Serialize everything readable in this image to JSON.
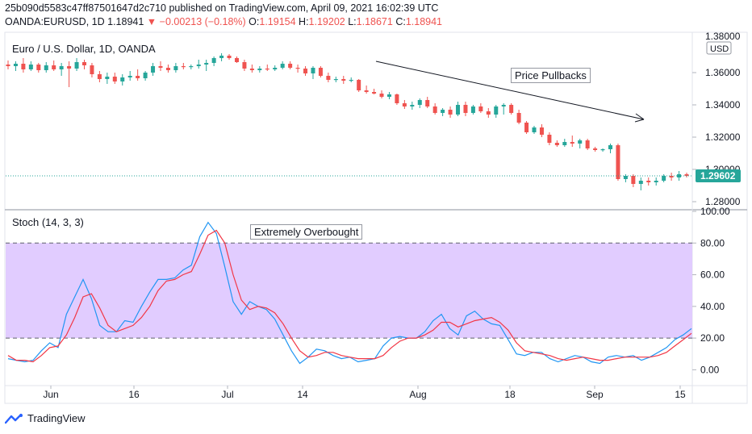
{
  "header": {
    "line1": "25b090d5583c47ff87501647d2c710 published on TradingView.com, April 09, 2021 16:02:39 UTC",
    "symbol": "OANDA:EURUSD, 1D",
    "last": "1.18941",
    "change_arrow": "▼",
    "change": "−0.00213 (−0.18%)",
    "o_label": "O:",
    "o_value": "1.19154",
    "h_label": "H:",
    "h_value": "1.19202",
    "l_label": "L:",
    "l_value": "1.18671",
    "c_label": "C:",
    "c_value": "1.18941"
  },
  "brand": {
    "name": "TradingView",
    "icon": "tradingview-logo-icon"
  },
  "colors": {
    "up": "#26a69a",
    "down": "#ef5350",
    "k_line": "#2196f3",
    "d_line": "#f23645",
    "band": "#e1ccff",
    "price_badge": "#26a69a"
  },
  "chart_data": [
    {
      "type": "candlestick",
      "title": "Euro / U.S. Dollar, 1D, OANDA",
      "currency": "USD",
      "ylim": [
        1.276,
        1.385
      ],
      "y_ticks": [
        "1.36000",
        "1.34000",
        "1.32000",
        "1.30000",
        "1.28000"
      ],
      "y_tick_top_partial": "1.38000",
      "x_ticks": [
        "Jun",
        "16",
        "Jul",
        "14",
        "Aug",
        "18",
        "Sep",
        "15"
      ],
      "last_price": "1.29602",
      "ohlc": [
        [
          1.365,
          1.3675,
          1.362,
          1.364
        ],
        [
          1.364,
          1.367,
          1.361,
          1.3655
        ],
        [
          1.3655,
          1.369,
          1.36,
          1.362
        ],
        [
          1.362,
          1.367,
          1.361,
          1.365
        ],
        [
          1.365,
          1.366,
          1.36,
          1.3615
        ],
        [
          1.3615,
          1.3665,
          1.36,
          1.3645
        ],
        [
          1.3645,
          1.3675,
          1.361,
          1.362
        ],
        [
          1.362,
          1.366,
          1.358,
          1.364
        ],
        [
          1.364,
          1.367,
          1.351,
          1.3625
        ],
        [
          1.3625,
          1.369,
          1.361,
          1.3665
        ],
        [
          1.3665,
          1.368,
          1.362,
          1.3645
        ],
        [
          1.3645,
          1.366,
          1.357,
          1.359
        ],
        [
          1.359,
          1.361,
          1.354,
          1.356
        ],
        [
          1.356,
          1.36,
          1.353,
          1.3575
        ],
        [
          1.3575,
          1.36,
          1.353,
          1.3545
        ],
        [
          1.3545,
          1.359,
          1.352,
          1.357
        ],
        [
          1.357,
          1.361,
          1.355,
          1.358
        ],
        [
          1.358,
          1.362,
          1.355,
          1.3565
        ],
        [
          1.3565,
          1.361,
          1.355,
          1.36
        ],
        [
          1.36,
          1.366,
          1.358,
          1.364
        ],
        [
          1.364,
          1.367,
          1.361,
          1.363
        ],
        [
          1.363,
          1.365,
          1.36,
          1.3615
        ],
        [
          1.3615,
          1.366,
          1.36,
          1.364
        ],
        [
          1.364,
          1.366,
          1.362,
          1.3635
        ],
        [
          1.3635,
          1.365,
          1.362,
          1.364
        ],
        [
          1.364,
          1.368,
          1.3625,
          1.365
        ],
        [
          1.365,
          1.368,
          1.361,
          1.366
        ],
        [
          1.366,
          1.37,
          1.364,
          1.369
        ],
        [
          1.369,
          1.372,
          1.367,
          1.3705
        ],
        [
          1.3705,
          1.3715,
          1.368,
          1.369
        ],
        [
          1.369,
          1.37,
          1.366,
          1.3665
        ],
        [
          1.3665,
          1.368,
          1.361,
          1.3625
        ],
        [
          1.3625,
          1.365,
          1.36,
          1.3615
        ],
        [
          1.3615,
          1.364,
          1.36,
          1.3625
        ],
        [
          1.3625,
          1.365,
          1.361,
          1.362
        ],
        [
          1.362,
          1.3645,
          1.361,
          1.363
        ],
        [
          1.363,
          1.367,
          1.362,
          1.3655
        ],
        [
          1.3655,
          1.367,
          1.362,
          1.363
        ],
        [
          1.363,
          1.365,
          1.36,
          1.3625
        ],
        [
          1.3625,
          1.364,
          1.358,
          1.3595
        ],
        [
          1.3595,
          1.364,
          1.356,
          1.363
        ],
        [
          1.363,
          1.364,
          1.357,
          1.358
        ],
        [
          1.358,
          1.36,
          1.354,
          1.3555
        ],
        [
          1.3555,
          1.3575,
          1.354,
          1.356
        ],
        [
          1.356,
          1.358,
          1.353,
          1.355
        ],
        [
          1.355,
          1.357,
          1.354,
          1.3555
        ],
        [
          1.3555,
          1.356,
          1.348,
          1.349
        ],
        [
          1.349,
          1.352,
          1.347,
          1.348
        ],
        [
          1.348,
          1.35,
          1.3465,
          1.347
        ],
        [
          1.347,
          1.349,
          1.344,
          1.345
        ],
        [
          1.345,
          1.348,
          1.3435,
          1.3465
        ],
        [
          1.3465,
          1.347,
          1.34,
          1.341
        ],
        [
          1.341,
          1.343,
          1.3375,
          1.339
        ],
        [
          1.339,
          1.342,
          1.337,
          1.34
        ],
        [
          1.34,
          1.344,
          1.338,
          1.343
        ],
        [
          1.343,
          1.345,
          1.338,
          1.339
        ],
        [
          1.339,
          1.341,
          1.334,
          1.335
        ],
        [
          1.335,
          1.338,
          1.333,
          1.337
        ],
        [
          1.337,
          1.339,
          1.332,
          1.334
        ],
        [
          1.334,
          1.342,
          1.333,
          1.34
        ],
        [
          1.34,
          1.342,
          1.333,
          1.335
        ],
        [
          1.335,
          1.34,
          1.334,
          1.339
        ],
        [
          1.339,
          1.341,
          1.335,
          1.336
        ],
        [
          1.336,
          1.338,
          1.332,
          1.334
        ],
        [
          1.334,
          1.34,
          1.332,
          1.339
        ],
        [
          1.339,
          1.341,
          1.334,
          1.34
        ],
        [
          1.34,
          1.341,
          1.334,
          1.335
        ],
        [
          1.335,
          1.337,
          1.328,
          1.329
        ],
        [
          1.329,
          1.33,
          1.322,
          1.323
        ],
        [
          1.323,
          1.327,
          1.322,
          1.326
        ],
        [
          1.326,
          1.328,
          1.32,
          1.3215
        ],
        [
          1.3215,
          1.323,
          1.315,
          1.3165
        ],
        [
          1.3165,
          1.318,
          1.314,
          1.315
        ],
        [
          1.315,
          1.319,
          1.314,
          1.317
        ],
        [
          1.317,
          1.321,
          1.314,
          1.316
        ],
        [
          1.316,
          1.319,
          1.313,
          1.318
        ],
        [
          1.318,
          1.319,
          1.312,
          1.313
        ],
        [
          1.313,
          1.314,
          1.311,
          1.312
        ],
        [
          1.312,
          1.313,
          1.311,
          1.3125
        ],
        [
          1.3125,
          1.316,
          1.31,
          1.315
        ],
        [
          1.315,
          1.316,
          1.293,
          1.294
        ],
        [
          1.294,
          1.297,
          1.292,
          1.296
        ],
        [
          1.296,
          1.297,
          1.289,
          1.291
        ],
        [
          1.291,
          1.295,
          1.287,
          1.293
        ],
        [
          1.293,
          1.295,
          1.29,
          1.292
        ],
        [
          1.292,
          1.295,
          1.29,
          1.293
        ],
        [
          1.293,
          1.297,
          1.292,
          1.296
        ],
        [
          1.296,
          1.298,
          1.293,
          1.295
        ],
        [
          1.295,
          1.299,
          1.293,
          1.297
        ],
        [
          1.297,
          1.298,
          1.295,
          1.296
        ]
      ]
    },
    {
      "type": "line",
      "title": "Stoch (14, 3, 3)",
      "ylim": [
        -10,
        100
      ],
      "y_ticks": [
        "100.00",
        "80.00",
        "60.00",
        "40.00",
        "20.00",
        "0.00"
      ],
      "band": [
        20,
        80
      ],
      "series": [
        {
          "values": [
            7,
            6,
            5,
            6,
            12,
            17,
            14,
            35,
            46,
            57,
            45,
            28,
            24,
            24,
            31,
            30,
            40,
            49,
            57,
            57,
            58,
            63,
            66,
            84,
            93,
            86,
            65,
            43,
            35,
            43,
            40,
            38,
            32,
            22,
            12,
            4,
            8,
            13,
            12,
            9,
            7,
            8,
            5,
            6,
            7,
            15,
            20,
            21,
            20,
            20,
            24,
            31,
            35,
            26,
            22,
            34,
            37,
            32,
            29,
            28,
            19,
            10,
            9,
            11,
            11,
            7,
            5,
            7,
            9,
            8,
            5,
            4,
            8,
            9,
            8,
            9,
            6,
            8,
            11,
            14,
            19,
            22,
            26
          ]
        },
        {
          "values": [
            9,
            6,
            6,
            5,
            9,
            14,
            15,
            22,
            33,
            46,
            48,
            39,
            28,
            24,
            26,
            28,
            33,
            40,
            50,
            56,
            57,
            60,
            62,
            73,
            85,
            88,
            80,
            60,
            44,
            38,
            40,
            39,
            36,
            29,
            20,
            12,
            8,
            9,
            11,
            11,
            9,
            8,
            7,
            7,
            7,
            9,
            14,
            18,
            20,
            20,
            22,
            25,
            30,
            30,
            27,
            29,
            31,
            32,
            33,
            30,
            25,
            17,
            12,
            11,
            10,
            9,
            7,
            6,
            7,
            8,
            7,
            6,
            6,
            7,
            8,
            8,
            8,
            8,
            9,
            11,
            15,
            19,
            23
          ]
        }
      ]
    }
  ],
  "annotations": {
    "price_pullbacks": "Price Pullbacks",
    "extremely_overbought": "Extremely Overbought"
  }
}
